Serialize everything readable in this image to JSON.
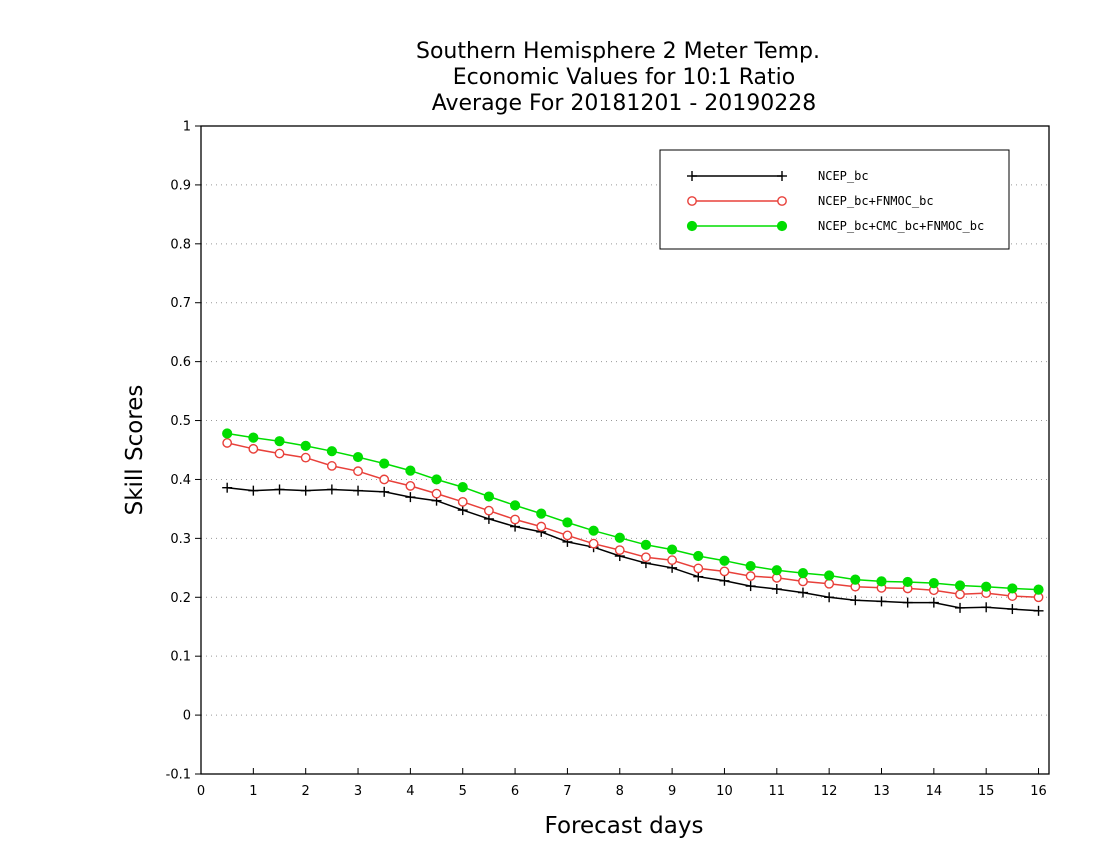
{
  "chart_data": {
    "type": "line",
    "title": [
      "Southern Hemisphere 2 Meter Temp.",
      "Economic Values for 10:1 Ratio",
      "Average For 20181201 - 20190228"
    ],
    "xlabel": "Forecast days",
    "ylabel": "Skill Scores",
    "xlim": [
      0,
      16.2
    ],
    "ylim": [
      -0.1,
      1
    ],
    "xticks": [
      "0",
      "1",
      "2",
      "3",
      "4",
      "5",
      "6",
      "7",
      "8",
      "9",
      "10",
      "11",
      "12",
      "13",
      "14",
      "15",
      "16"
    ],
    "yticks": [
      "-0.1",
      "0",
      "0.1",
      "0.2",
      "0.3",
      "0.4",
      "0.5",
      "0.6",
      "0.7",
      "0.8",
      "0.9",
      "1"
    ],
    "grid": "horizontal dotted",
    "legend_position": "top-right",
    "x": [
      0.5,
      1,
      1.5,
      2,
      2.5,
      3,
      3.5,
      4,
      4.5,
      5,
      5.5,
      6,
      6.5,
      7,
      7.5,
      8,
      8.5,
      9,
      9.5,
      10,
      10.5,
      11,
      11.5,
      12,
      12.5,
      13,
      13.5,
      14,
      14.5,
      15,
      15.5,
      16
    ],
    "series": [
      {
        "name": "NCEP_bc",
        "color": "#000000",
        "marker": "plus",
        "values": [
          0.386,
          0.381,
          0.383,
          0.381,
          0.383,
          0.381,
          0.379,
          0.37,
          0.364,
          0.348,
          0.333,
          0.32,
          0.311,
          0.294,
          0.285,
          0.27,
          0.258,
          0.25,
          0.235,
          0.228,
          0.219,
          0.214,
          0.208,
          0.2,
          0.195,
          0.193,
          0.191,
          0.191,
          0.182,
          0.183,
          0.18,
          0.177
        ]
      },
      {
        "name": "NCEP_bc+FNMOC_bc",
        "color": "#e8403a",
        "marker": "open-circle",
        "values": [
          0.462,
          0.452,
          0.444,
          0.437,
          0.423,
          0.414,
          0.4,
          0.389,
          0.376,
          0.362,
          0.347,
          0.332,
          0.32,
          0.305,
          0.291,
          0.28,
          0.268,
          0.263,
          0.249,
          0.244,
          0.236,
          0.233,
          0.227,
          0.223,
          0.218,
          0.216,
          0.215,
          0.212,
          0.205,
          0.207,
          0.202,
          0.2
        ]
      },
      {
        "name": "NCEP_bc+CMC_bc+FNMOC_bc",
        "color": "#00dd00",
        "marker": "filled-circle",
        "values": [
          0.478,
          0.471,
          0.465,
          0.457,
          0.448,
          0.438,
          0.427,
          0.415,
          0.4,
          0.387,
          0.371,
          0.356,
          0.342,
          0.327,
          0.313,
          0.301,
          0.289,
          0.281,
          0.27,
          0.262,
          0.253,
          0.246,
          0.241,
          0.237,
          0.23,
          0.227,
          0.226,
          0.224,
          0.22,
          0.218,
          0.215,
          0.213
        ]
      }
    ]
  }
}
